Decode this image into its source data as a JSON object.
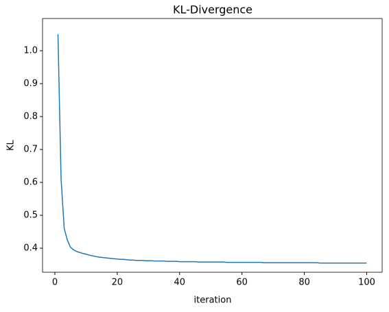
{
  "chart_data": {
    "type": "line",
    "title": "KL-Divergence",
    "x_label": "iteration",
    "y_label": "KL",
    "color": "#1f77b4",
    "x": [
      1,
      2,
      3,
      4,
      5,
      6,
      7,
      8,
      9,
      10,
      11,
      12,
      13,
      14,
      15,
      16,
      17,
      18,
      19,
      20,
      21,
      22,
      23,
      24,
      25,
      26,
      27,
      28,
      29,
      30,
      31,
      32,
      33,
      34,
      35,
      36,
      37,
      38,
      39,
      40,
      41,
      42,
      43,
      44,
      45,
      46,
      47,
      48,
      49,
      50,
      51,
      52,
      53,
      54,
      55,
      56,
      57,
      58,
      59,
      60,
      61,
      62,
      63,
      64,
      65,
      66,
      67,
      68,
      69,
      70,
      71,
      72,
      73,
      74,
      75,
      76,
      77,
      78,
      79,
      80,
      81,
      82,
      83,
      84,
      85,
      86,
      87,
      88,
      89,
      90,
      91,
      92,
      93,
      94,
      95,
      96,
      97,
      98,
      99,
      100
    ],
    "values": [
      1.05,
      0.61,
      0.46,
      0.425,
      0.403,
      0.395,
      0.39,
      0.387,
      0.384,
      0.382,
      0.379,
      0.377,
      0.375,
      0.373,
      0.372,
      0.371,
      0.37,
      0.369,
      0.368,
      0.367,
      0.366,
      0.366,
      0.365,
      0.364,
      0.364,
      0.363,
      0.363,
      0.363,
      0.362,
      0.362,
      0.362,
      0.361,
      0.361,
      0.361,
      0.361,
      0.36,
      0.36,
      0.36,
      0.36,
      0.359,
      0.359,
      0.359,
      0.359,
      0.359,
      0.359,
      0.358,
      0.358,
      0.358,
      0.358,
      0.358,
      0.358,
      0.358,
      0.358,
      0.358,
      0.357,
      0.357,
      0.357,
      0.357,
      0.357,
      0.357,
      0.357,
      0.357,
      0.357,
      0.357,
      0.357,
      0.357,
      0.356,
      0.356,
      0.356,
      0.356,
      0.356,
      0.356,
      0.356,
      0.356,
      0.356,
      0.356,
      0.356,
      0.356,
      0.356,
      0.356,
      0.356,
      0.356,
      0.356,
      0.356,
      0.355,
      0.355,
      0.355,
      0.355,
      0.355,
      0.355,
      0.355,
      0.355,
      0.355,
      0.355,
      0.355,
      0.355,
      0.355,
      0.355,
      0.355,
      0.355
    ],
    "xlim": [
      -3.95,
      104.95
    ],
    "xticks": [
      0,
      20,
      40,
      60,
      80,
      100
    ],
    "ylim": [
      0.327,
      1.098
    ],
    "yticks": [
      0.4,
      0.5,
      0.6,
      0.7,
      0.8,
      0.9,
      {
        "value": 1,
        "label": "1.0"
      }
    ]
  }
}
